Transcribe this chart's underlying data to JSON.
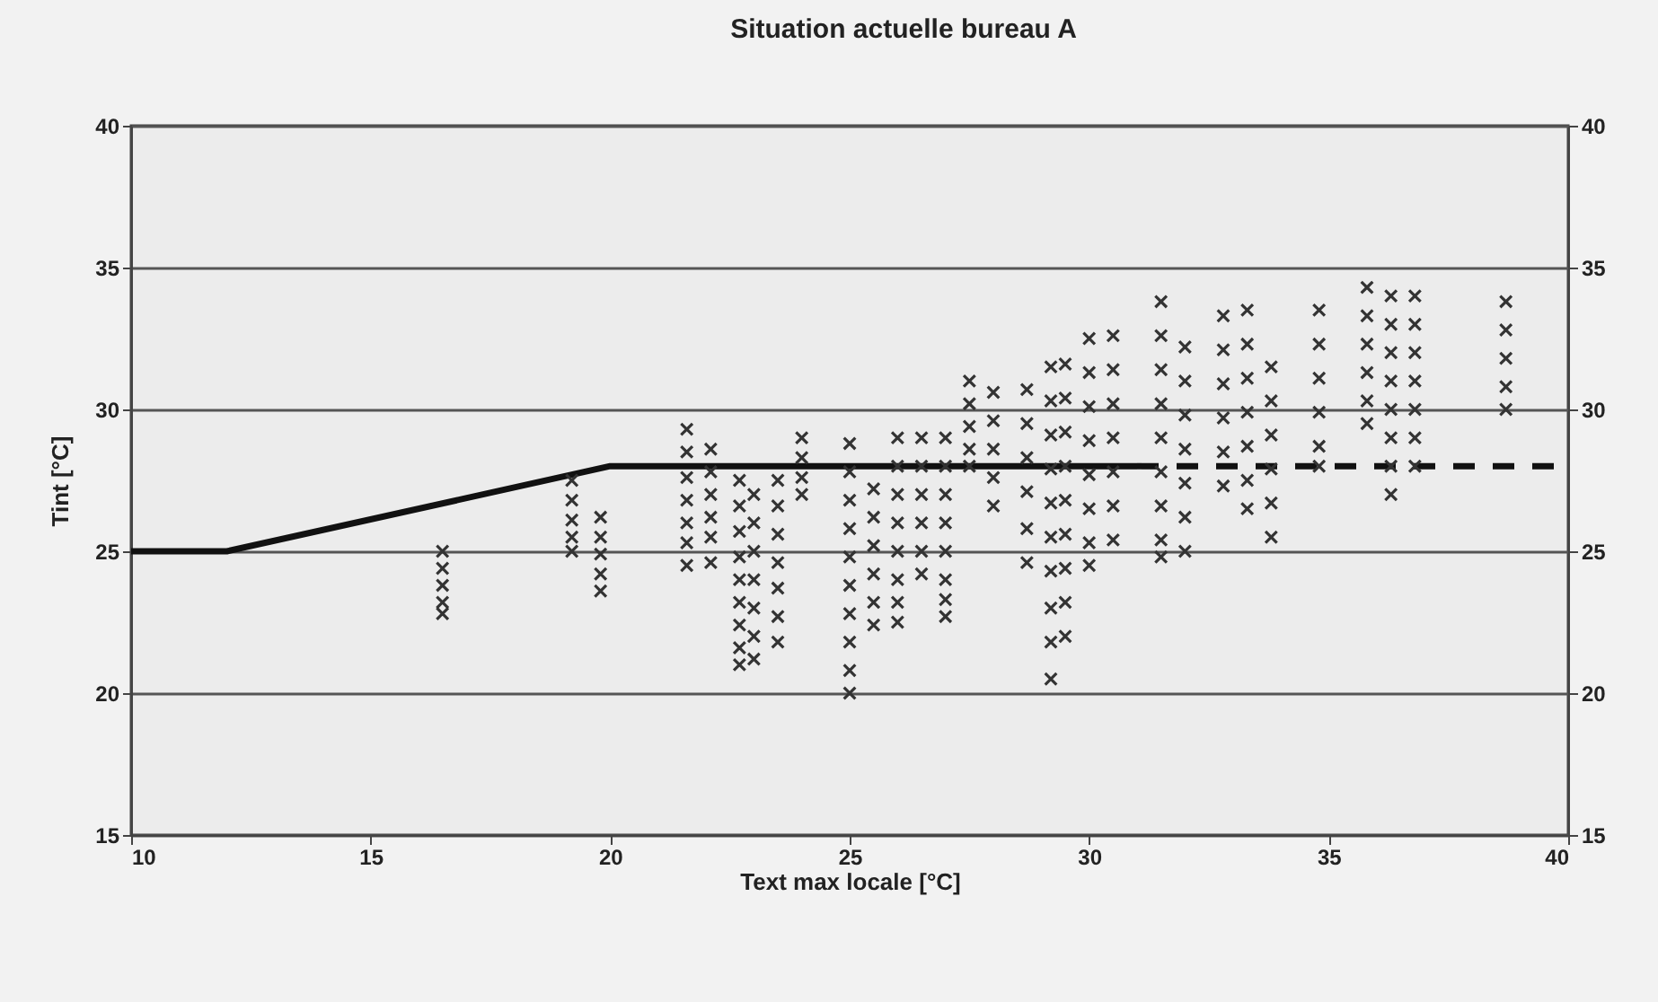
{
  "chart_data": {
    "type": "scatter",
    "title": "Situation actuelle bureau A",
    "xlabel": "Text max locale [°C]",
    "ylabel": "Tint [°C]",
    "xlim": [
      10,
      40
    ],
    "xticks": [
      10,
      15,
      20,
      25,
      30,
      35,
      40
    ],
    "ylim": [
      15,
      40
    ],
    "yticks": [
      15,
      20,
      25,
      30,
      35,
      40
    ],
    "y2lim": [
      15,
      40
    ],
    "y2ticks": [
      15,
      20,
      25,
      30,
      35,
      40
    ],
    "grid": "y",
    "series": [
      {
        "type": "line",
        "color": "#111111",
        "line_style": "solid",
        "x": [
          10,
          12,
          20,
          31
        ],
        "values": [
          25,
          25,
          28,
          28
        ]
      },
      {
        "type": "line",
        "color": "#111111",
        "line_style": "dashed",
        "x": [
          31,
          40
        ],
        "values": [
          28,
          28
        ]
      },
      {
        "color": "#333333",
        "marker": "cross",
        "x": [
          16.5,
          16.5,
          16.5,
          16.5,
          16.5,
          19.2,
          19.2,
          19.2,
          19.2,
          19.2,
          19.8,
          19.8,
          19.8,
          19.8,
          19.8,
          21.6,
          21.6,
          21.6,
          21.6,
          21.6,
          21.6,
          21.6,
          22.1,
          22.1,
          22.1,
          22.1,
          22.1,
          22.1,
          22.7,
          22.7,
          22.7,
          22.7,
          22.7,
          22.7,
          22.7,
          22.7,
          22.7,
          23,
          23,
          23,
          23,
          23,
          23,
          23,
          23.5,
          23.5,
          23.5,
          23.5,
          23.5,
          23.5,
          23.5,
          24,
          24,
          24,
          24,
          25,
          25,
          25,
          25,
          25,
          25,
          25,
          25,
          25,
          25,
          25.5,
          25.5,
          25.5,
          25.5,
          25.5,
          25.5,
          26,
          26,
          26,
          26,
          26,
          26,
          26,
          26,
          26.5,
          26.5,
          26.5,
          26.5,
          26.5,
          26.5,
          27,
          27,
          27,
          27,
          27,
          27,
          27,
          27,
          27.5,
          27.5,
          27.5,
          27.5,
          27.5,
          28,
          28,
          28,
          28,
          28,
          28.7,
          28.7,
          28.7,
          28.7,
          28.7,
          28.7,
          29.2,
          29.2,
          29.2,
          29.2,
          29.2,
          29.2,
          29.2,
          29.2,
          29.2,
          29.2,
          29.5,
          29.5,
          29.5,
          29.5,
          29.5,
          29.5,
          29.5,
          29.5,
          29.5,
          30,
          30,
          30,
          30,
          30,
          30,
          30,
          30,
          30.5,
          30.5,
          30.5,
          30.5,
          30.5,
          30.5,
          30.5,
          31.5,
          31.5,
          31.5,
          31.5,
          31.5,
          31.5,
          31.5,
          31.5,
          31.5,
          32,
          32,
          32,
          32,
          32,
          32,
          32,
          32.8,
          32.8,
          32.8,
          32.8,
          32.8,
          32.8,
          33.3,
          33.3,
          33.3,
          33.3,
          33.3,
          33.3,
          33.3,
          33.8,
          33.8,
          33.8,
          33.8,
          33.8,
          33.8,
          34.8,
          34.8,
          34.8,
          34.8,
          34.8,
          34.8,
          35.8,
          35.8,
          35.8,
          35.8,
          35.8,
          35.8,
          36.3,
          36.3,
          36.3,
          36.3,
          36.3,
          36.3,
          36.3,
          36.3,
          36.8,
          36.8,
          36.8,
          36.8,
          36.8,
          36.8,
          36.8,
          38.7,
          38.7,
          38.7,
          38.7,
          38.7
        ],
        "values": [
          25,
          24.4,
          23.8,
          23.2,
          22.8,
          27.5,
          26.8,
          26.1,
          25.5,
          25,
          26.2,
          25.5,
          24.9,
          24.2,
          23.6,
          29.3,
          28.5,
          27.6,
          26.8,
          26,
          25.3,
          24.5,
          28.6,
          27.8,
          27,
          26.2,
          25.5,
          24.6,
          27.5,
          26.6,
          25.7,
          24.8,
          24,
          23.2,
          22.4,
          21.6,
          21,
          27,
          26,
          25,
          24,
          23,
          22,
          21.2,
          27.5,
          26.6,
          25.6,
          24.6,
          23.7,
          22.7,
          21.8,
          29,
          28.3,
          27.6,
          27,
          28.8,
          27.8,
          26.8,
          25.8,
          24.8,
          23.8,
          22.8,
          21.8,
          20.8,
          20,
          27.2,
          26.2,
          25.2,
          24.2,
          23.2,
          22.4,
          29,
          28,
          27,
          26,
          25,
          24,
          23.2,
          22.5,
          29,
          28,
          27,
          26,
          25,
          24.2,
          29,
          28,
          27,
          26,
          25,
          24,
          23.3,
          22.7,
          31,
          30.2,
          29.4,
          28.6,
          28,
          30.6,
          29.6,
          28.6,
          27.6,
          26.6,
          30.7,
          29.5,
          28.3,
          27.1,
          25.8,
          24.6,
          31.5,
          30.3,
          29.1,
          27.9,
          26.7,
          25.5,
          24.3,
          23,
          21.8,
          20.5,
          31.6,
          30.4,
          29.2,
          28,
          26.8,
          25.6,
          24.4,
          23.2,
          22,
          32.5,
          31.3,
          30.1,
          28.9,
          27.7,
          26.5,
          25.3,
          24.5,
          32.6,
          31.4,
          30.2,
          29,
          27.8,
          26.6,
          25.4,
          33.8,
          32.6,
          31.4,
          30.2,
          29,
          27.8,
          26.6,
          25.4,
          24.8,
          32.2,
          31,
          29.8,
          28.6,
          27.4,
          26.2,
          25,
          33.3,
          32.1,
          30.9,
          29.7,
          28.5,
          27.3,
          33.5,
          32.3,
          31.1,
          29.9,
          28.7,
          27.5,
          26.5,
          31.5,
          30.3,
          29.1,
          27.9,
          26.7,
          25.5,
          33.5,
          32.3,
          31.1,
          29.9,
          28.7,
          28,
          34.3,
          33.3,
          32.3,
          31.3,
          30.3,
          29.5,
          34,
          33,
          32,
          31,
          30,
          29,
          28,
          27,
          34,
          33,
          32,
          31,
          30,
          29,
          28,
          33.8,
          32.8,
          31.8,
          30.8,
          30
        ]
      }
    ]
  }
}
